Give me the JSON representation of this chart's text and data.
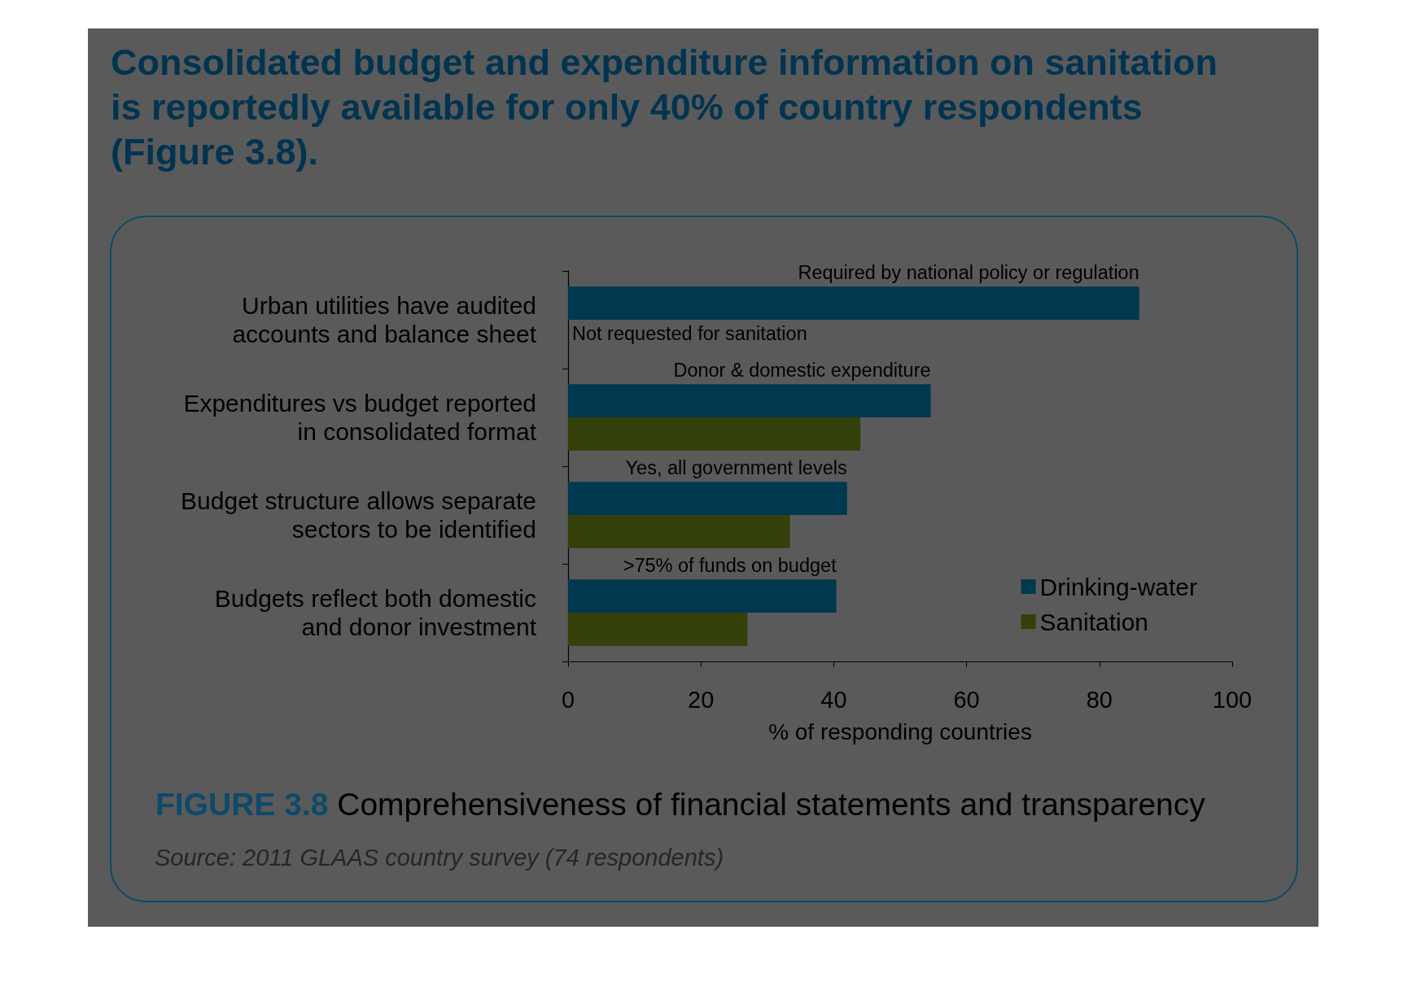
{
  "chart_data": {
    "type": "bar",
    "orientation": "horizontal",
    "title": "Consolidated budget and expenditure information on sanitation is reportedly available for only 40% of country respondents (Figure 3.8).",
    "categories": [
      "Urban utilities have audited\naccounts and balance sheet",
      "Expenditures vs budget reported\nin consolidated format",
      "Budget structure allows separate\nsectors to be identified",
      "Budgets reflect both domestic\nand donor investment"
    ],
    "series": [
      {
        "name": "Drinking-water",
        "color": "#00384f",
        "values": [
          86,
          54.6,
          42,
          40.4
        ]
      },
      {
        "name": "Sanitation",
        "color": "#334009",
        "values": [
          null,
          44,
          33.4,
          27
        ]
      }
    ],
    "xlabel": "% of responding countries",
    "xlim": [
      0,
      100
    ],
    "xticks": [
      0,
      20,
      40,
      60,
      80,
      100
    ],
    "legend": "bottom right",
    "annotations": [
      {
        "text": "Required by national policy or regulation",
        "x": 86,
        "y": "Urban utilities have audited\naccounts and balance sheet"
      },
      {
        "text": "Not requested for sanitation",
        "x": 0,
        "y": "Urban utilities have audited\naccounts and balance sheet"
      },
      {
        "text": "Donor & domestic expenditure",
        "x": 54.6,
        "y": "Expenditures vs budget reported\nin consolidated format"
      },
      {
        "text": "Yes, all government levels",
        "x": 42,
        "y": "Budget structure allows separate\nsectors to be identified"
      },
      {
        "text": ">75% of funds on budget",
        "x": 40.4,
        "y": "Budgets reflect both domestic\nand donor investment"
      },
      "FIGURE 3.8 Comprehensiveness of financial statements and transparency",
      "Source: 2011 GLAAS country survey (74 respondents)"
    ]
  }
}
